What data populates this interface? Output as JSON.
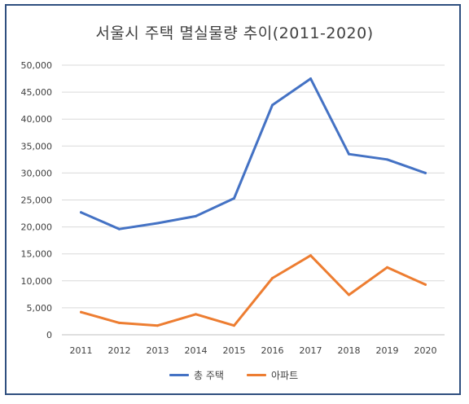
{
  "chart_data": {
    "type": "line",
    "title": "서울시 주택 멸실물량 추이(2011-2020)",
    "categories": [
      "2011",
      "2012",
      "2013",
      "2014",
      "2015",
      "2016",
      "2017",
      "2018",
      "2019",
      "2020"
    ],
    "ylim": [
      0,
      50000
    ],
    "yticks": [
      "0",
      "5,000",
      "10,000",
      "15,000",
      "20,000",
      "25,000",
      "30,000",
      "35,000",
      "40,000",
      "45,000",
      "50,000"
    ],
    "ytick_values": [
      0,
      5000,
      10000,
      15000,
      20000,
      25000,
      30000,
      35000,
      40000,
      45000,
      50000
    ],
    "grid": true,
    "legend": "bottom",
    "series": [
      {
        "name": "총 주택",
        "color": "#4472c4",
        "values": [
          22700,
          19600,
          20700,
          22000,
          25300,
          42600,
          47500,
          33500,
          32500,
          30000
        ]
      },
      {
        "name": "아파트",
        "color": "#ed7d31",
        "values": [
          4200,
          2200,
          1700,
          3800,
          1700,
          10500,
          14700,
          7400,
          12500,
          9300
        ]
      }
    ]
  }
}
